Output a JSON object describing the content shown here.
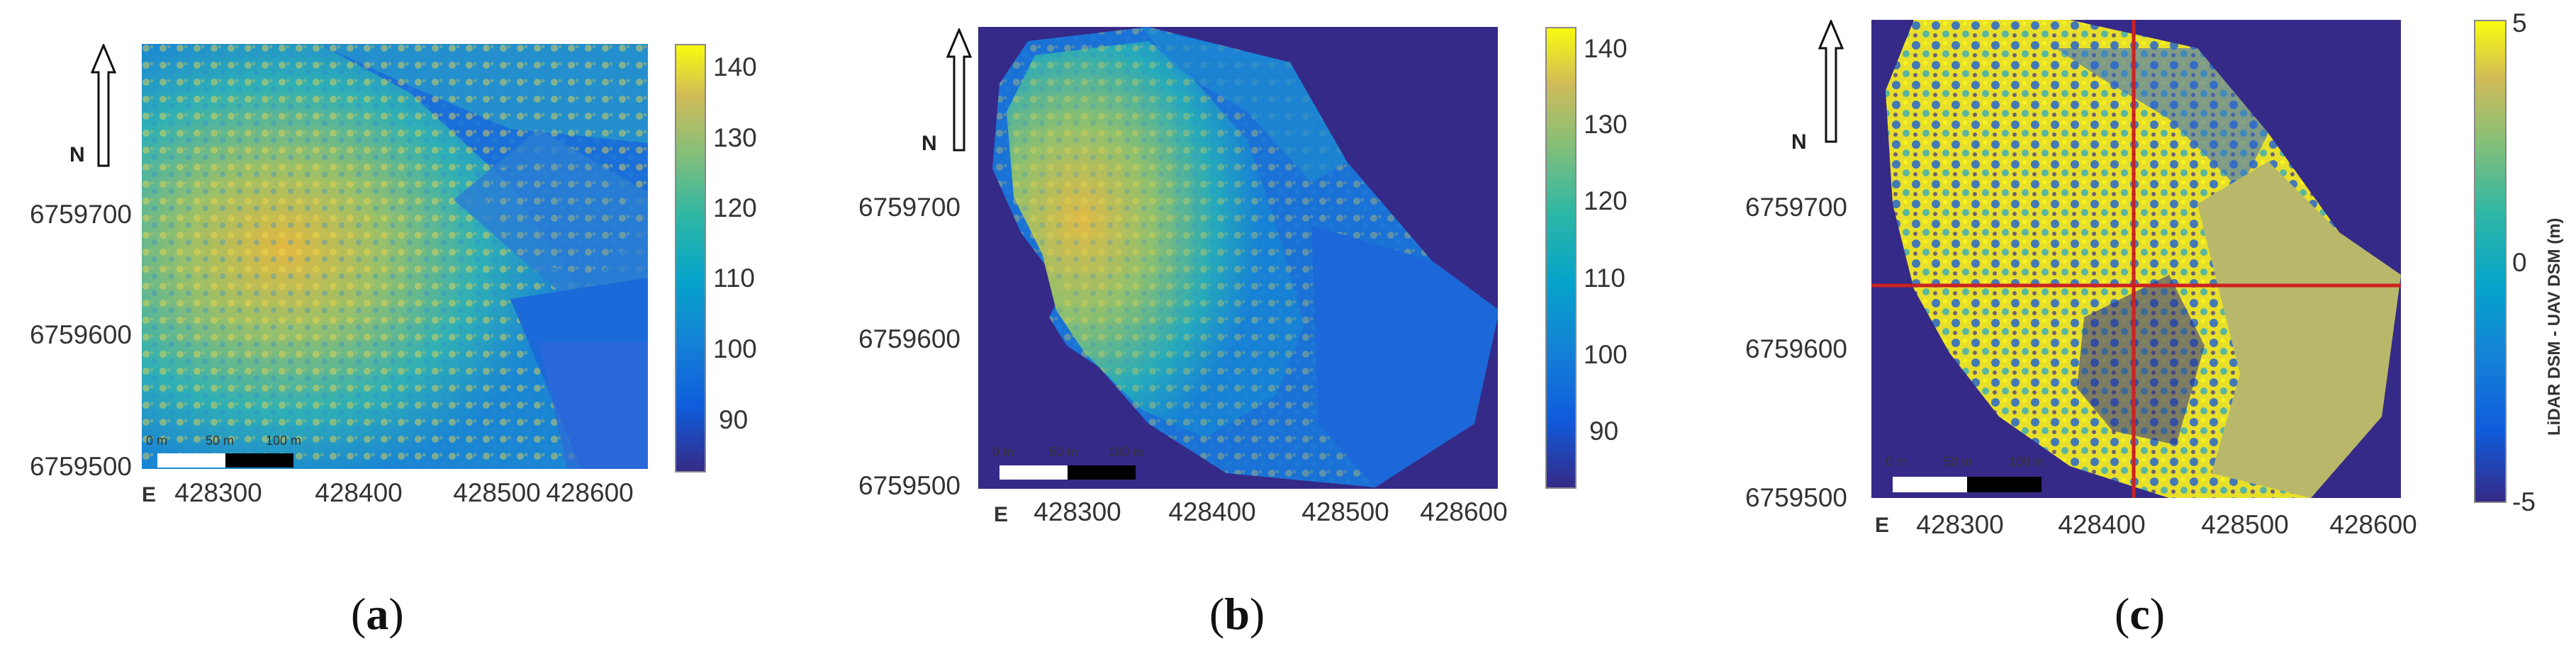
{
  "panels": [
    {
      "label_open": "(",
      "label_letter": "a",
      "label_close": ")",
      "north": "N",
      "east": "E",
      "y_ticks": [
        "6759700",
        "6759600",
        "6759500"
      ],
      "x_ticks": [
        "428300",
        "428400",
        "428500",
        "428600"
      ],
      "colorbar_ticks": [
        "140",
        "130",
        "120",
        "110",
        "100",
        "90"
      ],
      "scalebar_ticks": [
        "0 m",
        "50 m",
        "100 m"
      ]
    },
    {
      "label_open": "(",
      "label_letter": "b",
      "label_close": ")",
      "north": "N",
      "east": "E",
      "y_ticks": [
        "6759700",
        "6759600",
        "6759500"
      ],
      "x_ticks": [
        "428300",
        "428400",
        "428500",
        "428600"
      ],
      "colorbar_ticks": [
        "140",
        "130",
        "120",
        "110",
        "100",
        "90"
      ],
      "scalebar_ticks": [
        "0 m",
        "50 m",
        "100 m"
      ]
    },
    {
      "label_open": "(",
      "label_letter": "c",
      "label_close": ")",
      "north": "N",
      "east": "E",
      "y_ticks": [
        "6759700",
        "6759600",
        "6759500"
      ],
      "x_ticks": [
        "428300",
        "428400",
        "428500",
        "428600"
      ],
      "colorbar_ticks": [
        "5",
        "0",
        "-5"
      ],
      "colorbar_label": "LiDAR DSM - UAV DSM (m)",
      "scalebar_ticks": [
        "0 m",
        "50 m",
        "100 m"
      ]
    }
  ],
  "colors": {
    "parula_low": "#352a87",
    "parula_mid": "#1fa9c9",
    "parula_high": "#f9fb0e",
    "nodata_fill": "#352a87",
    "crosshair": "#cc2222"
  }
}
